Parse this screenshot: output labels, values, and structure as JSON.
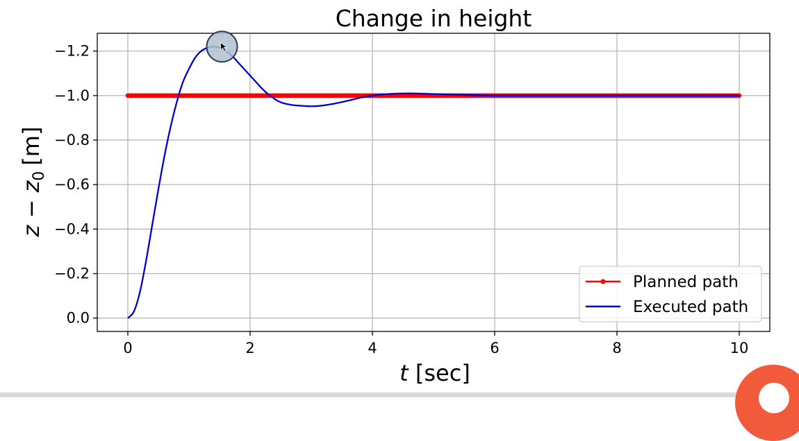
{
  "chart_data": {
    "type": "line",
    "title": "Change in height",
    "xlabel_main": "t",
    "xlabel_unit": "[sec]",
    "ylabel_main": "z − z",
    "ylabel_sub": "0",
    "ylabel_unit": "[m]",
    "xlim": [
      -0.5,
      10.5
    ],
    "ylim": [
      0.06,
      -1.28
    ],
    "x_ticks": [
      0,
      2,
      4,
      6,
      8,
      10
    ],
    "x_tick_labels": [
      "0",
      "2",
      "4",
      "6",
      "8",
      "10"
    ],
    "y_ticks": [
      0.0,
      -0.2,
      -0.4,
      -0.6,
      -0.8,
      -1.0,
      -1.2
    ],
    "y_tick_labels": [
      "0.0",
      "−0.2",
      "−0.4",
      "−0.6",
      "−0.8",
      "−1.0",
      "−1.2"
    ],
    "grid": true,
    "legend_position": "bottom-right",
    "series": [
      {
        "name": "Planned path",
        "color": "#ff0000",
        "x": [
          0,
          10
        ],
        "y": [
          -1.0,
          -1.0
        ]
      },
      {
        "name": "Executed path",
        "color": "#0000cc",
        "x": [
          0,
          0.1,
          0.2,
          0.3,
          0.4,
          0.5,
          0.6,
          0.7,
          0.8,
          0.9,
          1.0,
          1.1,
          1.2,
          1.3,
          1.4,
          1.5,
          1.6,
          1.7,
          1.8,
          1.9,
          2.0,
          2.1,
          2.2,
          2.3,
          2.4,
          2.5,
          2.6,
          2.7,
          2.8,
          2.9,
          3.0,
          3.1,
          3.2,
          3.4,
          3.6,
          3.8,
          4.0,
          4.2,
          4.4,
          4.6,
          4.8,
          5.0,
          5.5,
          6.0,
          7.0,
          8.0,
          9.0,
          10.0
        ],
        "y": [
          0.0,
          -0.03,
          -0.12,
          -0.26,
          -0.42,
          -0.58,
          -0.73,
          -0.86,
          -0.97,
          -1.06,
          -1.12,
          -1.17,
          -1.2,
          -1.215,
          -1.22,
          -1.215,
          -1.2,
          -1.18,
          -1.15,
          -1.12,
          -1.09,
          -1.06,
          -1.03,
          -1.005,
          -0.985,
          -0.97,
          -0.962,
          -0.957,
          -0.955,
          -0.953,
          -0.952,
          -0.953,
          -0.956,
          -0.965,
          -0.977,
          -0.99,
          -1.0,
          -1.006,
          -1.009,
          -1.01,
          -1.009,
          -1.007,
          -1.003,
          -1.0,
          -1.0,
          -1.0,
          -1.0,
          -1.0
        ]
      }
    ]
  },
  "cursor": {
    "x": 1.54,
    "y": -1.22,
    "fill": "#b0bfd0",
    "stroke": "#2d3b55"
  },
  "colors": {
    "corner_badge": "#f15a3a"
  }
}
